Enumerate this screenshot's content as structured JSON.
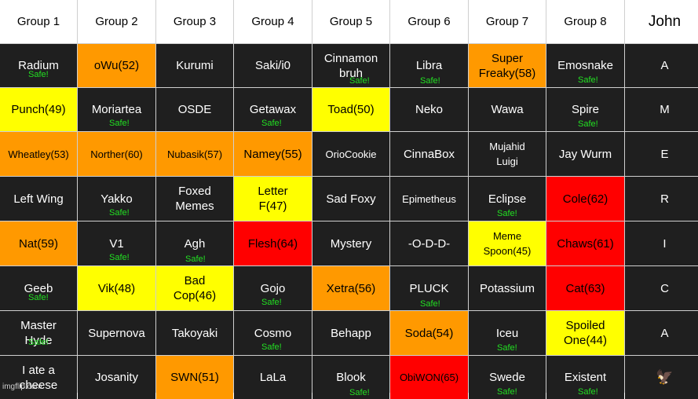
{
  "headers": [
    "Group 1",
    "Group 2",
    "Group 3",
    "Group 4",
    "Group 5",
    "Group 6",
    "Group 7",
    "Group 8",
    "John"
  ],
  "safe_label": "Safe!",
  "watermark": "imgflip.com",
  "colors": {
    "orange": "#ff9900",
    "yellow": "#ffff00",
    "red": "#ff0000",
    "dark": "#1f1f1f",
    "safe_green": "#22e022"
  },
  "rows": [
    [
      {
        "text": "Radium",
        "color": "dark",
        "safe": true
      },
      {
        "text": "oWu(52)",
        "color": "orange"
      },
      {
        "text": "Kurumi",
        "color": "dark"
      },
      {
        "text": "Saki/i0",
        "color": "dark"
      },
      {
        "text": "Cinnamon\nbruh",
        "color": "dark",
        "safe": true
      },
      {
        "text": "Libra",
        "color": "dark",
        "safe": true
      },
      {
        "text": "Super\nFreaky(58)",
        "color": "orange"
      },
      {
        "text": "Emosnake",
        "color": "dark",
        "safe": true
      },
      {
        "text": "A",
        "color": "dark"
      }
    ],
    [
      {
        "text": "Punch(49)",
        "color": "yellow"
      },
      {
        "text": "Moriartea",
        "color": "dark",
        "safe": true
      },
      {
        "text": "OSDE",
        "color": "dark"
      },
      {
        "text": "Getawax",
        "color": "dark",
        "safe": true
      },
      {
        "text": "Toad(50)",
        "color": "yellow"
      },
      {
        "text": "Neko",
        "color": "dark"
      },
      {
        "text": "Wawa",
        "color": "dark"
      },
      {
        "text": "Spire",
        "color": "dark",
        "safe": true
      },
      {
        "text": "M",
        "color": "dark"
      }
    ],
    [
      {
        "text": "Wheatley(53)",
        "color": "orange",
        "small": true
      },
      {
        "text": "Norther(60)",
        "color": "orange",
        "small": true
      },
      {
        "text": "Nubasik(57)",
        "color": "orange",
        "small": true
      },
      {
        "text": "Namey(55)",
        "color": "orange"
      },
      {
        "text": "OrioCookie",
        "color": "dark",
        "small": true
      },
      {
        "text": "CinnaBox",
        "color": "dark"
      },
      {
        "text": "Mujahid\nLuigi",
        "color": "dark",
        "small": true
      },
      {
        "text": "Jay Wurm",
        "color": "dark"
      },
      {
        "text": "E",
        "color": "dark"
      }
    ],
    [
      {
        "text": "Left Wing",
        "color": "dark"
      },
      {
        "text": "Yakko",
        "color": "dark",
        "safe": true
      },
      {
        "text": "Foxed\nMemes",
        "color": "dark"
      },
      {
        "text": "Letter\nF(47)",
        "color": "yellow"
      },
      {
        "text": "Sad Foxy",
        "color": "dark"
      },
      {
        "text": "Epimetheus",
        "color": "dark",
        "small": true
      },
      {
        "text": "Eclipse",
        "color": "dark",
        "safe": true
      },
      {
        "text": "Cole(62)",
        "color": "red"
      },
      {
        "text": "R",
        "color": "dark"
      }
    ],
    [
      {
        "text": "Nat(59)",
        "color": "orange"
      },
      {
        "text": "V1",
        "color": "dark",
        "safe": true
      },
      {
        "text": "Agh",
        "color": "dark",
        "safe": true
      },
      {
        "text": "Flesh(64)",
        "color": "red"
      },
      {
        "text": "Mystery",
        "color": "dark"
      },
      {
        "text": "-O-D-D-",
        "color": "dark"
      },
      {
        "text": "Meme\nSpoon(45)",
        "color": "yellow",
        "small": true
      },
      {
        "text": "Chaws(61)",
        "color": "red"
      },
      {
        "text": "I",
        "color": "dark"
      }
    ],
    [
      {
        "text": "Geeb",
        "color": "dark",
        "safe": true
      },
      {
        "text": "Vik(48)",
        "color": "yellow"
      },
      {
        "text": "Bad\nCop(46)",
        "color": "yellow"
      },
      {
        "text": "Gojo",
        "color": "dark",
        "safe": true
      },
      {
        "text": "Xetra(56)",
        "color": "orange"
      },
      {
        "text": "PLUCK",
        "color": "dark",
        "safe": true
      },
      {
        "text": "Potassium",
        "color": "dark"
      },
      {
        "text": "Cat(63)",
        "color": "red"
      },
      {
        "text": "C",
        "color": "dark"
      }
    ],
    [
      {
        "text": "Master\nHyde",
        "color": "dark",
        "safe": true
      },
      {
        "text": "Supernova",
        "color": "dark"
      },
      {
        "text": "Takoyaki",
        "color": "dark"
      },
      {
        "text": "Cosmo",
        "color": "dark",
        "safe": true
      },
      {
        "text": "Behapp",
        "color": "dark"
      },
      {
        "text": "Soda(54)",
        "color": "orange"
      },
      {
        "text": "Iceu",
        "color": "dark",
        "safe": true
      },
      {
        "text": "Spoiled\nOne(44)",
        "color": "yellow"
      },
      {
        "text": "A",
        "color": "dark"
      }
    ],
    [
      {
        "text": "I ate a\ncheese",
        "color": "dark"
      },
      {
        "text": "Josanity",
        "color": "dark"
      },
      {
        "text": "SWN(51)",
        "color": "orange"
      },
      {
        "text": "LaLa",
        "color": "dark"
      },
      {
        "text": "Blook",
        "color": "dark",
        "safe": true
      },
      {
        "text": "ObiWON(65)",
        "color": "red",
        "small": true
      },
      {
        "text": "Swede",
        "color": "dark",
        "safe": true
      },
      {
        "text": "Existent",
        "color": "dark",
        "safe": true
      },
      {
        "text": "",
        "color": "dark",
        "icon": "eagle-icon"
      }
    ]
  ]
}
